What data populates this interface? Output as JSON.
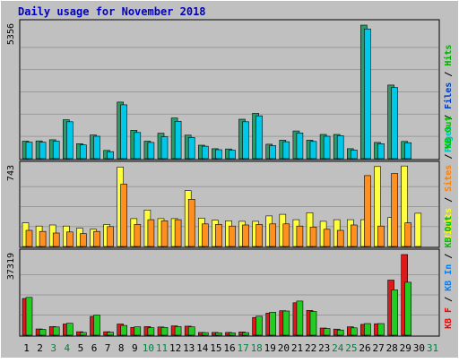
{
  "title": "Daily usage for November 2018",
  "colors": {
    "page_bg": "#c0c0c0",
    "panel_bg": "#c0c0c0",
    "gridline": "#9a9a9a",
    "title": "#0000c0",
    "pages": "#00c0c0",
    "files": "#0040c0",
    "hits": "#00b000",
    "visits": "#ffff00",
    "sites": "#ff8000",
    "kb_out": "#00c000",
    "kb_in": "#0080ff",
    "kb_f": "#ff0000",
    "separator": "#000000",
    "weekend_day": "#008040"
  },
  "days": [
    "1",
    "2",
    "3",
    "4",
    "5",
    "6",
    "7",
    "8",
    "9",
    "10",
    "11",
    "12",
    "13",
    "14",
    "15",
    "16",
    "17",
    "18",
    "19",
    "20",
    "21",
    "22",
    "23",
    "24",
    "25",
    "26",
    "27",
    "28",
    "29",
    "30",
    "31"
  ],
  "weekend_days": [
    "3",
    "4",
    "10",
    "11",
    "17",
    "18",
    "24",
    "25",
    "31"
  ],
  "chart_data": [
    {
      "type": "bar",
      "panel": "top",
      "max_label": "5356",
      "ylim": [
        0,
        5356
      ],
      "legend": [
        {
          "name": "Pages",
          "color": "#00c0c0"
        },
        {
          "name": "Files",
          "color": "#0040c0"
        },
        {
          "name": "Hits",
          "color": "#00b000"
        }
      ],
      "categories": [
        "1",
        "2",
        "3",
        "4",
        "5",
        "6",
        "7",
        "8",
        "9",
        "10",
        "11",
        "12",
        "13",
        "14",
        "15",
        "16",
        "17",
        "18",
        "19",
        "20",
        "21",
        "22",
        "23",
        "24",
        "25",
        "26",
        "27",
        "28",
        "29",
        "30",
        "31"
      ],
      "series": [
        {
          "name": "Hits",
          "color": "#2a9a6a",
          "values": [
            700,
            710,
            760,
            1560,
            600,
            950,
            330,
            2270,
            1140,
            700,
            1020,
            1630,
            940,
            540,
            400,
            390,
            1580,
            1820,
            580,
            740,
            1110,
            740,
            970,
            970,
            400,
            5356,
            650,
            2950,
            690,
            0,
            0
          ]
        },
        {
          "name": "Pages",
          "color": "#00c8e8",
          "values": [
            660,
            660,
            700,
            1480,
            550,
            900,
            280,
            2160,
            1050,
            650,
            880,
            1500,
            850,
            500,
            360,
            340,
            1480,
            1720,
            520,
            680,
            1030,
            690,
            900,
            920,
            350,
            5200,
            600,
            2850,
            640,
            0,
            0
          ]
        }
      ]
    },
    {
      "type": "bar",
      "panel": "middle",
      "max_label": "743",
      "ylim": [
        0,
        743
      ],
      "legend": [
        {
          "name": "Visits",
          "color": "#ffff00"
        },
        {
          "name": "Sites",
          "color": "#ff8000"
        },
        {
          "name": "KB Out",
          "color": "#00c000"
        }
      ],
      "categories": [
        "1",
        "2",
        "3",
        "4",
        "5",
        "6",
        "7",
        "8",
        "9",
        "10",
        "11",
        "12",
        "13",
        "14",
        "15",
        "16",
        "17",
        "18",
        "19",
        "20",
        "21",
        "22",
        "23",
        "24",
        "25",
        "26",
        "27",
        "28",
        "29",
        "30",
        "31"
      ],
      "series": [
        {
          "name": "Visits",
          "color": "#ffff40",
          "values": [
            220,
            190,
            200,
            190,
            170,
            160,
            205,
            740,
            260,
            340,
            260,
            260,
            520,
            265,
            245,
            240,
            235,
            235,
            285,
            300,
            250,
            315,
            235,
            250,
            250,
            250,
            745,
            270,
            750,
            310,
            0
          ]
        },
        {
          "name": "Sites",
          "color": "#ff9020",
          "values": [
            150,
            140,
            125,
            135,
            120,
            140,
            185,
            580,
            205,
            250,
            240,
            250,
            440,
            210,
            205,
            190,
            200,
            205,
            210,
            210,
            190,
            180,
            160,
            150,
            200,
            660,
            190,
            680,
            220,
            0,
            0
          ]
        }
      ]
    },
    {
      "type": "bar",
      "panel": "bottom",
      "max_label": "37319",
      "ylim": [
        0,
        37319
      ],
      "legend": [
        {
          "name": "KB F",
          "color": "#ff0000"
        },
        {
          "name": "KB In",
          "color": "#0080ff"
        },
        {
          "name": "KB Out",
          "color": "#00c000"
        }
      ],
      "categories": [
        "1",
        "2",
        "3",
        "4",
        "5",
        "6",
        "7",
        "8",
        "9",
        "10",
        "11",
        "12",
        "13",
        "14",
        "15",
        "16",
        "17",
        "18",
        "19",
        "20",
        "21",
        "22",
        "23",
        "24",
        "25",
        "26",
        "27",
        "28",
        "29",
        "30",
        "31"
      ],
      "series": [
        {
          "name": "KB F",
          "color": "#e01818",
          "values": [
            17000,
            2900,
            4000,
            5200,
            1600,
            8700,
            1600,
            5200,
            3600,
            4000,
            3800,
            4300,
            4200,
            1300,
            1300,
            1300,
            1500,
            8200,
            10200,
            11300,
            15000,
            11500,
            3300,
            2800,
            3900,
            5000,
            5300,
            25500,
            37319,
            0,
            0
          ]
        },
        {
          "name": "KB Out",
          "color": "#22cc22",
          "values": [
            17500,
            2700,
            3800,
            5500,
            1300,
            9300,
            1400,
            4500,
            3900,
            3500,
            3600,
            4000,
            3900,
            1200,
            1100,
            1100,
            1200,
            8800,
            10600,
            11200,
            15800,
            11000,
            3100,
            2400,
            3400,
            5400,
            5400,
            21000,
            24500,
            0,
            0
          ]
        }
      ]
    }
  ]
}
